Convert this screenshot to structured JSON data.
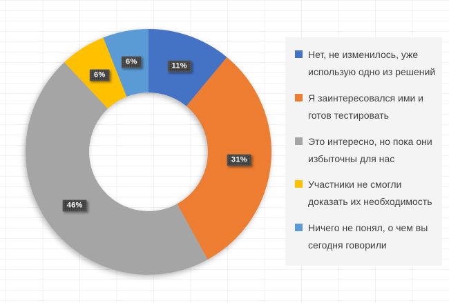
{
  "chart_data": {
    "type": "pie",
    "subtype": "doughnut",
    "title": "",
    "legend_position": "right",
    "categories": [
      "Нет, не изменилось, уже использую одно из решений",
      "Я заинтересовался ими и готов тестировать",
      "Это интересно, но пока они избыточны для нас",
      "Участники не смогли доказать их необходимость",
      "Ничего не понял, о чем вы сегодня говорили"
    ],
    "values": [
      11,
      31,
      46,
      6,
      6
    ],
    "data_labels": [
      "11%",
      "31%",
      "46%",
      "6%",
      "6%"
    ],
    "colors": [
      "#4472C4",
      "#ED7D31",
      "#A5A5A5",
      "#FFC000",
      "#5B9BD5"
    ],
    "start_angle_deg": 0,
    "direction": "clockwise",
    "grid": "faint spreadsheet gridlines behind chart"
  },
  "style_colors": {
    "label_box_bg": "#3B3B3B",
    "label_box_border": "#606060",
    "label_text": "#FFFFFF",
    "legend_panel_bg": "#F4F4F4",
    "legend_text": "#404040",
    "background": "#FFFFFF"
  }
}
